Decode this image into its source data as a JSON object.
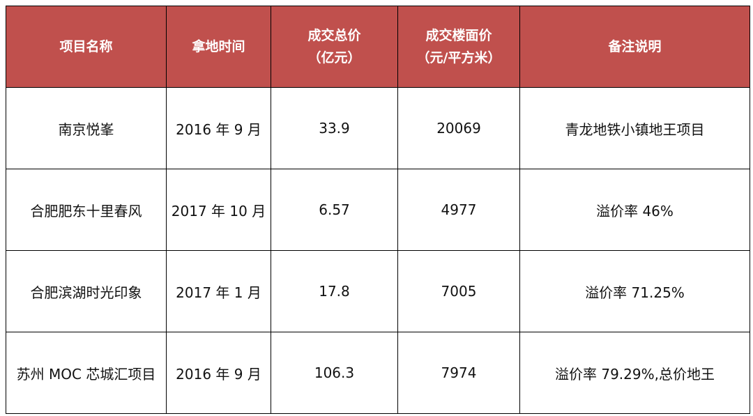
{
  "table": {
    "header": [
      [
        "项目名称"
      ],
      [
        "拿地时间"
      ],
      [
        "成交总价",
        "（亿元）"
      ],
      [
        "成交楼面价",
        "（元/平方米）"
      ],
      [
        "备注说明"
      ]
    ],
    "rows": [
      [
        "南京悦峯",
        "2016 年 9 月",
        33.9,
        20069,
        "青龙地铁小镇地王项目"
      ],
      [
        "合肥肥东十里春风",
        "2017 年 10 月",
        6.57,
        4977,
        "溢价率 46%"
      ],
      [
        "合肥滨湖时光印象",
        "2017 年 1 月",
        17.8,
        7005,
        "溢价率 71.25%"
      ],
      [
        "苏州 MOC 芯城汇项目",
        "2016 年 9 月",
        106.3,
        7974,
        "溢价率 79.29%,总价地王"
      ]
    ]
  }
}
